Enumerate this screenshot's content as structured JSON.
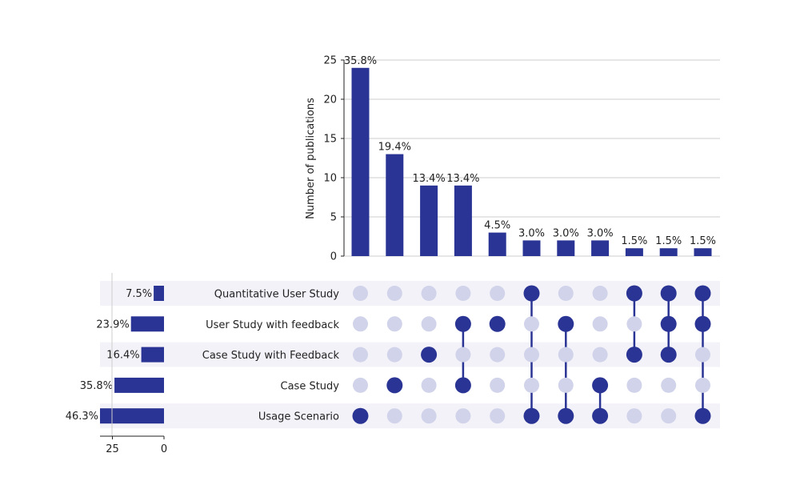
{
  "chart_data": {
    "type": "upset",
    "colors": {
      "bar": "#2a3494",
      "dot_active": "#2a3494",
      "dot_inactive": "#d0d3ea",
      "stripe": "#f3f2f8",
      "grid": "#cccccc"
    },
    "intersections": {
      "ylabel": "Number of publications",
      "ylim": [
        0,
        25
      ],
      "yticks": [
        0,
        5,
        10,
        15,
        20,
        25
      ],
      "grid": true,
      "values": [
        24,
        13,
        9,
        9,
        3,
        2,
        2,
        2,
        1,
        1,
        1
      ],
      "labels": [
        "35.8%",
        "19.4%",
        "13.4%",
        "13.4%",
        "4.5%",
        "3.0%",
        "3.0%",
        "3.0%",
        "1.5%",
        "1.5%",
        "1.5%"
      ],
      "members": [
        [
          "Usage Scenario"
        ],
        [
          "Case Study"
        ],
        [
          "Case Study with Feedback"
        ],
        [
          "User Study with feedback",
          "Case Study"
        ],
        [
          "User Study with feedback"
        ],
        [
          "Quantitative User Study",
          "Usage Scenario"
        ],
        [
          "User Study with feedback",
          "Usage Scenario"
        ],
        [
          "Case Study",
          "Usage Scenario"
        ],
        [
          "Quantitative User Study",
          "Case Study with Feedback"
        ],
        [
          "Quantitative User Study",
          "User Study with feedback",
          "Case Study with Feedback"
        ],
        [
          "Quantitative User Study",
          "User Study with feedback",
          "Usage Scenario"
        ]
      ]
    },
    "sets": {
      "names": [
        "Quantitative User Study",
        "User Study with feedback",
        "Case Study with Feedback",
        "Case Study",
        "Usage Scenario"
      ],
      "values": [
        5,
        16,
        11,
        24,
        31
      ],
      "labels": [
        "7.5%",
        "23.9%",
        "16.4%",
        "35.8%",
        "46.3%"
      ],
      "xlim": [
        31,
        0
      ],
      "xticks": [
        25,
        0
      ]
    }
  }
}
